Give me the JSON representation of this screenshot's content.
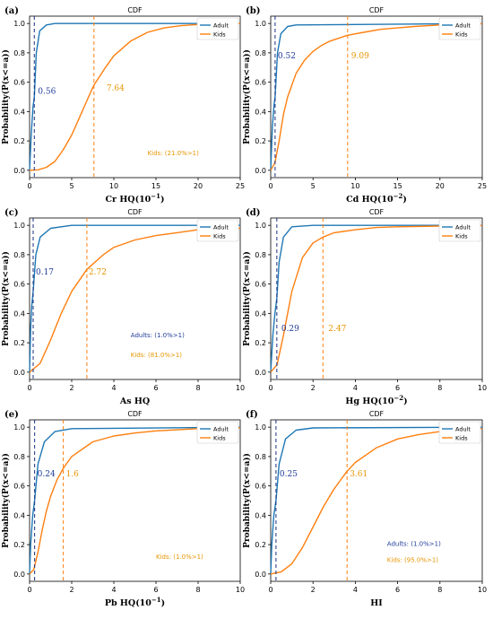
{
  "colors": {
    "adult": "#1f77b4",
    "kids": "#ff7f0e",
    "adult_text": "#1f3c99",
    "kids_text": "#e69500",
    "axis": "#000000"
  },
  "chart_data": [
    {
      "panel_label": "(a)",
      "type": "line",
      "title": "CDF",
      "xlabel": "Cr HQ(10",
      "xlabel_sup": "−1",
      "xlabel_tail": ")",
      "ylabel": "Probability(P(x<=a))",
      "xlim": [
        0,
        25
      ],
      "ylim": [
        -0.05,
        1.05
      ],
      "xticks": [
        0,
        5,
        10,
        15,
        20,
        25
      ],
      "yticks": [
        0.0,
        0.2,
        0.4,
        0.6,
        0.8,
        1.0
      ],
      "legend": {
        "position": "top-right",
        "entries": [
          "Adult",
          "Kids"
        ]
      },
      "series": [
        {
          "name": "Adult",
          "x": [
            0,
            0.2,
            0.4,
            0.56,
            0.8,
            1.2,
            2,
            3,
            25
          ],
          "y": [
            0,
            0.25,
            0.43,
            0.5,
            0.8,
            0.95,
            0.99,
            1.0,
            1.0
          ]
        },
        {
          "name": "Kids",
          "x": [
            0,
            1,
            2,
            3,
            4,
            5,
            6,
            7,
            7.64,
            9,
            10,
            12,
            14,
            16,
            18,
            20,
            22,
            25
          ],
          "y": [
            0,
            0.003,
            0.02,
            0.06,
            0.14,
            0.24,
            0.37,
            0.5,
            0.58,
            0.7,
            0.78,
            0.88,
            0.94,
            0.97,
            0.985,
            0.993,
            0.997,
            1.0
          ]
        }
      ],
      "vlines": [
        {
          "x": 0.56,
          "series": "Adult",
          "label": "0.56"
        },
        {
          "x": 7.64,
          "series": "Kids",
          "label": "7.64"
        }
      ],
      "annotations": [
        {
          "text": "Kids: (21.0%>1)",
          "series": "Kids"
        }
      ]
    },
    {
      "panel_label": "(b)",
      "type": "line",
      "title": "CDF",
      "xlabel": "Cd HQ(10",
      "xlabel_sup": "−2",
      "xlabel_tail": ")",
      "ylabel": "Probability(P(x<=a))",
      "xlim": [
        0,
        25
      ],
      "ylim": [
        -0.05,
        1.05
      ],
      "xticks": [
        0,
        5,
        10,
        15,
        20,
        25
      ],
      "yticks": [
        0.0,
        0.2,
        0.4,
        0.6,
        0.8,
        1.0
      ],
      "legend": {
        "position": "top-right",
        "entries": [
          "Adult",
          "Kids"
        ]
      },
      "series": [
        {
          "name": "Adult",
          "x": [
            0,
            0.2,
            0.4,
            0.52,
            0.8,
            1.2,
            2,
            3,
            25
          ],
          "y": [
            0,
            0.3,
            0.45,
            0.5,
            0.8,
            0.93,
            0.98,
            0.99,
            1.0
          ]
        },
        {
          "name": "Kids",
          "x": [
            0,
            0.5,
            1,
            1.5,
            2,
            3,
            4,
            5,
            6,
            7,
            9.09,
            11,
            13,
            15,
            17,
            20,
            22,
            25
          ],
          "y": [
            0,
            0.05,
            0.2,
            0.38,
            0.5,
            0.66,
            0.75,
            0.81,
            0.85,
            0.88,
            0.92,
            0.94,
            0.96,
            0.97,
            0.98,
            0.99,
            0.995,
            0.998
          ]
        }
      ],
      "vlines": [
        {
          "x": 0.52,
          "series": "Adult",
          "label": "0.52"
        },
        {
          "x": 9.09,
          "series": "Kids",
          "label": "9.09"
        }
      ],
      "annotations": []
    },
    {
      "panel_label": "(c)",
      "type": "line",
      "title": "CDF",
      "xlabel": "As HQ",
      "xlabel_sup": "",
      "xlabel_tail": "",
      "ylabel": "Probability(P(x<=a))",
      "xlim": [
        0,
        10
      ],
      "ylim": [
        -0.05,
        1.05
      ],
      "xticks": [
        0,
        2,
        4,
        6,
        8,
        10
      ],
      "yticks": [
        0.0,
        0.2,
        0.4,
        0.6,
        0.8,
        1.0
      ],
      "legend": {
        "position": "top-right",
        "entries": [
          "Adult",
          "Kids"
        ]
      },
      "series": [
        {
          "name": "Adult",
          "x": [
            0,
            0.05,
            0.1,
            0.17,
            0.3,
            0.5,
            1,
            2,
            10
          ],
          "y": [
            0,
            0.3,
            0.45,
            0.55,
            0.8,
            0.92,
            0.98,
            1.0,
            1.0
          ]
        },
        {
          "name": "Kids",
          "x": [
            0,
            0.5,
            1,
            1.5,
            2,
            2.72,
            3.5,
            4,
            5,
            6,
            7,
            8,
            9,
            10
          ],
          "y": [
            0,
            0.06,
            0.22,
            0.4,
            0.55,
            0.7,
            0.8,
            0.85,
            0.9,
            0.93,
            0.95,
            0.97,
            0.975,
            0.98
          ]
        }
      ],
      "vlines": [
        {
          "x": 0.17,
          "series": "Adult",
          "label": "0.17"
        },
        {
          "x": 2.72,
          "series": "Kids",
          "label": "2.72"
        }
      ],
      "annotations": [
        {
          "text": "Adults: (1.0%>1)",
          "series": "Adult"
        },
        {
          "text": "Kids: (81.0%>1)",
          "series": "Kids"
        }
      ]
    },
    {
      "panel_label": "(d)",
      "type": "line",
      "title": "CDF",
      "xlabel": "Hg HQ(10",
      "xlabel_sup": "−2",
      "xlabel_tail": ")",
      "ylabel": "Probability(P(x<=a))",
      "xlim": [
        0,
        10
      ],
      "ylim": [
        -0.05,
        1.05
      ],
      "xticks": [
        0,
        2,
        4,
        6,
        8,
        10
      ],
      "yticks": [
        0.0,
        0.2,
        0.4,
        0.6,
        0.8,
        1.0
      ],
      "legend": {
        "position": "top-right",
        "entries": [
          "Adult",
          "Kids"
        ]
      },
      "series": [
        {
          "name": "Adult",
          "x": [
            0,
            0.1,
            0.2,
            0.29,
            0.4,
            0.6,
            1,
            2,
            10
          ],
          "y": [
            0,
            0.25,
            0.4,
            0.5,
            0.75,
            0.92,
            0.99,
            1.0,
            1.0
          ]
        },
        {
          "name": "Kids",
          "x": [
            0,
            0.3,
            0.6,
            1,
            1.5,
            2,
            2.47,
            3,
            4,
            5,
            6,
            8,
            10
          ],
          "y": [
            0,
            0.05,
            0.25,
            0.55,
            0.78,
            0.88,
            0.92,
            0.95,
            0.97,
            0.985,
            0.99,
            0.995,
            0.998
          ]
        }
      ],
      "vlines": [
        {
          "x": 0.29,
          "series": "Adult",
          "label": "0.29"
        },
        {
          "x": 2.47,
          "series": "Kids",
          "label": "2.47"
        }
      ],
      "annotations": []
    },
    {
      "panel_label": "(e)",
      "type": "line",
      "title": "CDF",
      "xlabel": "Pb HQ(10",
      "xlabel_sup": "−1",
      "xlabel_tail": ")",
      "ylabel": "Probability(P(x<=a))",
      "xlim": [
        0,
        10
      ],
      "ylim": [
        -0.05,
        1.05
      ],
      "xticks": [
        0,
        2,
        4,
        6,
        8,
        10
      ],
      "yticks": [
        0.0,
        0.2,
        0.4,
        0.6,
        0.8,
        1.0
      ],
      "legend": {
        "position": "top-right",
        "entries": [
          "Adult",
          "Kids"
        ]
      },
      "series": [
        {
          "name": "Adult",
          "x": [
            0,
            0.05,
            0.15,
            0.24,
            0.4,
            0.7,
            1.2,
            2,
            10
          ],
          "y": [
            0,
            0.2,
            0.4,
            0.5,
            0.75,
            0.9,
            0.97,
            0.99,
            1.0
          ]
        },
        {
          "name": "Kids",
          "x": [
            0,
            0.2,
            0.4,
            0.6,
            0.8,
            1,
            1.3,
            1.6,
            2,
            3,
            4,
            5,
            6,
            8,
            10
          ],
          "y": [
            0,
            0.03,
            0.15,
            0.3,
            0.43,
            0.53,
            0.64,
            0.72,
            0.8,
            0.9,
            0.94,
            0.96,
            0.975,
            0.99,
            0.995
          ]
        }
      ],
      "vlines": [
        {
          "x": 0.24,
          "series": "Adult",
          "label": "0.24"
        },
        {
          "x": 1.6,
          "series": "Kids",
          "label": "1.6"
        }
      ],
      "annotations": [
        {
          "text": "Kids: (1.0%>1)",
          "series": "Kids"
        }
      ]
    },
    {
      "panel_label": "(f)",
      "type": "line",
      "title": "CDF",
      "xlabel": "HI",
      "xlabel_sup": "",
      "xlabel_tail": "",
      "ylabel": "Probability(P(x<=a))",
      "xlim": [
        0,
        10
      ],
      "ylim": [
        -0.05,
        1.05
      ],
      "xticks": [
        0,
        2,
        4,
        6,
        8,
        10
      ],
      "yticks": [
        0.0,
        0.2,
        0.4,
        0.6,
        0.8,
        1.0
      ],
      "legend": {
        "position": "top-right",
        "entries": [
          "Adult",
          "Kids"
        ]
      },
      "series": [
        {
          "name": "Adult",
          "x": [
            0,
            0.05,
            0.15,
            0.25,
            0.4,
            0.7,
            1.2,
            2,
            10
          ],
          "y": [
            0,
            0.2,
            0.4,
            0.5,
            0.75,
            0.92,
            0.98,
            0.995,
            1.0
          ]
        },
        {
          "name": "Kids",
          "x": [
            0,
            0.5,
            1,
            1.5,
            2,
            2.5,
            3,
            3.61,
            4,
            5,
            6,
            7,
            8,
            9,
            10
          ],
          "y": [
            0,
            0.015,
            0.07,
            0.18,
            0.32,
            0.46,
            0.58,
            0.7,
            0.76,
            0.86,
            0.92,
            0.95,
            0.97,
            0.98,
            0.99
          ]
        }
      ],
      "vlines": [
        {
          "x": 0.25,
          "series": "Adult",
          "label": "0.25"
        },
        {
          "x": 3.61,
          "series": "Kids",
          "label": "3.61"
        }
      ],
      "annotations": [
        {
          "text": "Adults: (1.0%>1)",
          "series": "Adult"
        },
        {
          "text": "Kids: (95.0%>1)",
          "series": "Kids"
        }
      ]
    }
  ]
}
